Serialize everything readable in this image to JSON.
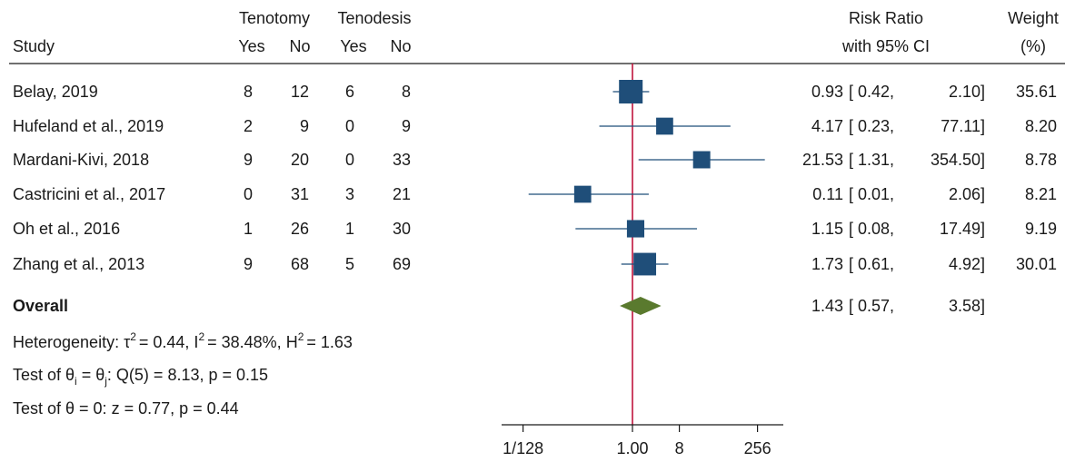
{
  "chart_data": {
    "type": "forest",
    "title": "",
    "headers": {
      "study": "Study",
      "group1": "Tenotomy",
      "group2": "Tenodesis",
      "yes": "Yes",
      "no": "No",
      "effect_line1": "Risk Ratio",
      "effect_line2": "with 95% CI",
      "weight_line1": "Weight",
      "weight_line2": "(%)"
    },
    "studies": [
      {
        "name": "Belay, 2019",
        "tenotomy_yes": "8",
        "tenotomy_no": "12",
        "tenodesis_yes": "6",
        "tenodesis_no": "8",
        "rr": 0.93,
        "lo": 0.42,
        "hi": 2.1,
        "rr_text": "0.93",
        "lo_text": "[ 0.42,",
        "hi_text": "2.10]",
        "weight": 35.61,
        "weight_text": "35.61"
      },
      {
        "name": "Hufeland et al., 2019",
        "tenotomy_yes": "2",
        "tenotomy_no": "9",
        "tenodesis_yes": "0",
        "tenodesis_no": "9",
        "rr": 4.17,
        "lo": 0.23,
        "hi": 77.11,
        "rr_text": "4.17",
        "lo_text": "[ 0.23,",
        "hi_text": "77.11]",
        "weight": 8.2,
        "weight_text": "8.20"
      },
      {
        "name": "Mardani-Kivi, 2018",
        "tenotomy_yes": "9",
        "tenotomy_no": "20",
        "tenodesis_yes": "0",
        "tenodesis_no": "33",
        "rr": 21.53,
        "lo": 1.31,
        "hi": 354.5,
        "rr_text": "21.53",
        "lo_text": "[ 1.31,",
        "hi_text": "354.50]",
        "weight": 8.78,
        "weight_text": "8.78"
      },
      {
        "name": "Castricini et al., 2017",
        "tenotomy_yes": "0",
        "tenotomy_no": "31",
        "tenodesis_yes": "3",
        "tenodesis_no": "21",
        "rr": 0.11,
        "lo": 0.01,
        "hi": 2.06,
        "rr_text": "0.11",
        "lo_text": "[ 0.01,",
        "hi_text": "2.06]",
        "weight": 8.21,
        "weight_text": "8.21"
      },
      {
        "name": "Oh et al., 2016",
        "tenotomy_yes": "1",
        "tenotomy_no": "26",
        "tenodesis_yes": "1",
        "tenodesis_no": "30",
        "rr": 1.15,
        "lo": 0.08,
        "hi": 17.49,
        "rr_text": "1.15",
        "lo_text": "[ 0.08,",
        "hi_text": "17.49]",
        "weight": 9.19,
        "weight_text": "9.19"
      },
      {
        "name": "Zhang et al., 2013",
        "tenotomy_yes": "9",
        "tenotomy_no": "68",
        "tenodesis_yes": "5",
        "tenodesis_no": "69",
        "rr": 1.73,
        "lo": 0.61,
        "hi": 4.92,
        "rr_text": "1.73",
        "lo_text": "[ 0.61,",
        "hi_text": "4.92]",
        "weight": 30.01,
        "weight_text": "30.01"
      }
    ],
    "overall": {
      "label": "Overall",
      "rr": 1.43,
      "lo": 0.57,
      "hi": 3.58,
      "rr_text": "1.43",
      "lo_text": "[ 0.57,",
      "hi_text": "3.58]"
    },
    "stats": {
      "heterogeneity": {
        "prefix": "Heterogeneity: τ",
        "tau2": "= 0.44, I",
        "i2": "= 38.48%, H",
        "h2": "= 1.63",
        "sup": "2"
      },
      "test_equal": {
        "prefix": "Test of θ",
        "sub_i": "i",
        "mid": " = θ",
        "sub_j": "j",
        "suffix": ": Q(5) = 8.13, p = 0.15"
      },
      "test_zero": "Test of θ = 0: z = 0.77, p = 0.44"
    },
    "x_axis": {
      "scale": "log2",
      "range": [
        0.00625,
        354.5
      ],
      "ticks": [
        {
          "value": 0.0078125,
          "label": "1/128"
        },
        {
          "value": 1,
          "label": "1.00"
        },
        {
          "value": 8,
          "label": "8"
        },
        {
          "value": 256,
          "label": "256"
        }
      ],
      "null_value": 1
    },
    "colors": {
      "marker": "#1f4e79",
      "diamond": "#5a7a2e",
      "null_line": "#c0143c",
      "text": "#1a1a1a"
    }
  }
}
